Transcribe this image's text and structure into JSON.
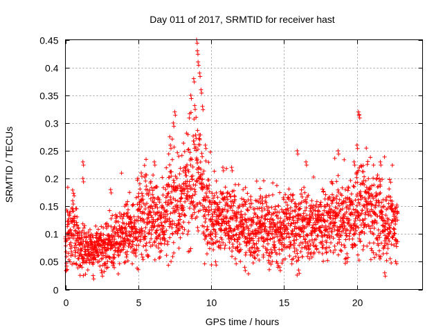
{
  "chart_data": {
    "type": "scatter",
    "title": "Day 011 of 2017, SRMTID for receiver hast",
    "xlabel": "GPS time / hours",
    "ylabel": "SRMTID / TECUs",
    "xlim": [
      0,
      24.5
    ],
    "ylim": [
      0,
      0.45
    ],
    "x_ticks": [
      0,
      5,
      10,
      15,
      20
    ],
    "y_ticks": [
      0,
      0.05,
      0.1,
      0.15,
      0.2,
      0.25,
      0.3,
      0.35,
      0.4,
      0.45
    ],
    "grid": true,
    "marker": "+",
    "color": "#ff0000",
    "x_range_observed": [
      0,
      22.8
    ],
    "trend": [
      {
        "x": 0.0,
        "y": 0.09
      },
      {
        "x": 0.5,
        "y": 0.11
      },
      {
        "x": 1.0,
        "y": 0.08
      },
      {
        "x": 1.5,
        "y": 0.075
      },
      {
        "x": 2.0,
        "y": 0.07
      },
      {
        "x": 2.5,
        "y": 0.075
      },
      {
        "x": 3.0,
        "y": 0.08
      },
      {
        "x": 3.5,
        "y": 0.09
      },
      {
        "x": 4.0,
        "y": 0.1
      },
      {
        "x": 4.5,
        "y": 0.105
      },
      {
        "x": 5.0,
        "y": 0.12
      },
      {
        "x": 5.5,
        "y": 0.135
      },
      {
        "x": 6.0,
        "y": 0.13
      },
      {
        "x": 6.5,
        "y": 0.12
      },
      {
        "x": 7.0,
        "y": 0.14
      },
      {
        "x": 7.5,
        "y": 0.16
      },
      {
        "x": 8.0,
        "y": 0.15
      },
      {
        "x": 8.5,
        "y": 0.19
      },
      {
        "x": 9.0,
        "y": 0.22
      },
      {
        "x": 9.5,
        "y": 0.17
      },
      {
        "x": 10.0,
        "y": 0.13
      },
      {
        "x": 10.5,
        "y": 0.12
      },
      {
        "x": 11.0,
        "y": 0.13
      },
      {
        "x": 11.5,
        "y": 0.12
      },
      {
        "x": 12.0,
        "y": 0.11
      },
      {
        "x": 12.5,
        "y": 0.11
      },
      {
        "x": 13.0,
        "y": 0.115
      },
      {
        "x": 13.5,
        "y": 0.12
      },
      {
        "x": 14.0,
        "y": 0.11
      },
      {
        "x": 14.5,
        "y": 0.1
      },
      {
        "x": 15.0,
        "y": 0.11
      },
      {
        "x": 15.5,
        "y": 0.12
      },
      {
        "x": 16.0,
        "y": 0.11
      },
      {
        "x": 16.5,
        "y": 0.11
      },
      {
        "x": 17.0,
        "y": 0.115
      },
      {
        "x": 17.5,
        "y": 0.12
      },
      {
        "x": 18.0,
        "y": 0.12
      },
      {
        "x": 18.5,
        "y": 0.13
      },
      {
        "x": 19.0,
        "y": 0.13
      },
      {
        "x": 19.5,
        "y": 0.12
      },
      {
        "x": 20.0,
        "y": 0.14
      },
      {
        "x": 20.5,
        "y": 0.15
      },
      {
        "x": 21.0,
        "y": 0.14
      },
      {
        "x": 21.5,
        "y": 0.13
      },
      {
        "x": 22.0,
        "y": 0.12
      },
      {
        "x": 22.5,
        "y": 0.115
      },
      {
        "x": 22.8,
        "y": 0.11
      }
    ],
    "highlights": [
      {
        "x": 0.5,
        "y": 0.16
      },
      {
        "x": 1.2,
        "y": 0.23
      },
      {
        "x": 1.2,
        "y": 0.2
      },
      {
        "x": 3.1,
        "y": 0.18
      },
      {
        "x": 5.2,
        "y": 0.21
      },
      {
        "x": 6.1,
        "y": 0.23
      },
      {
        "x": 7.2,
        "y": 0.26
      },
      {
        "x": 7.4,
        "y": 0.3
      },
      {
        "x": 7.5,
        "y": 0.32
      },
      {
        "x": 8.6,
        "y": 0.35
      },
      {
        "x": 8.8,
        "y": 0.38
      },
      {
        "x": 9.0,
        "y": 0.45
      },
      {
        "x": 9.05,
        "y": 0.43
      },
      {
        "x": 9.1,
        "y": 0.41
      },
      {
        "x": 9.2,
        "y": 0.39
      },
      {
        "x": 9.3,
        "y": 0.36
      },
      {
        "x": 9.4,
        "y": 0.33
      },
      {
        "x": 9.6,
        "y": 0.26
      },
      {
        "x": 10.8,
        "y": 0.22
      },
      {
        "x": 11.4,
        "y": 0.22
      },
      {
        "x": 15.9,
        "y": 0.25
      },
      {
        "x": 16.5,
        "y": 0.23
      },
      {
        "x": 18.7,
        "y": 0.25
      },
      {
        "x": 19.8,
        "y": 0.23
      },
      {
        "x": 20.1,
        "y": 0.32
      },
      {
        "x": 20.15,
        "y": 0.315
      },
      {
        "x": 20.0,
        "y": 0.26
      },
      {
        "x": 21.6,
        "y": 0.23
      },
      {
        "x": 21.9,
        "y": 0.03
      },
      {
        "x": 2.5,
        "y": 0.03
      },
      {
        "x": 1.9,
        "y": 0.025
      },
      {
        "x": 10.3,
        "y": 0.05
      },
      {
        "x": 12.3,
        "y": 0.04
      },
      {
        "x": 16.0,
        "y": 0.035
      },
      {
        "x": 14.7,
        "y": 0.04
      }
    ]
  }
}
